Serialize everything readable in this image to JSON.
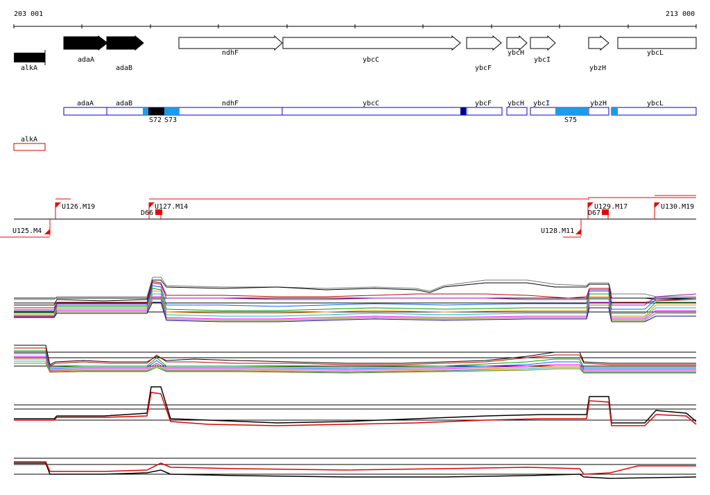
{
  "axis": {
    "start_label": "203 001",
    "end_label": "213 000"
  },
  "genes_plus": [
    "adaA",
    "adaB",
    "ndhF",
    "ybcC",
    "ybcF",
    "ybcH",
    "ybcI",
    "ybzH",
    "ybcL"
  ],
  "genes_minus": [
    "alkA"
  ],
  "transcripts_plus": [
    "adaA",
    "adaB",
    "ndhF",
    "ybcC",
    "ybcF",
    "ybcH",
    "ybcI",
    "ybzH",
    "ybcL"
  ],
  "transcripts_minus": [
    "alkA"
  ],
  "segment_labels": [
    "S72",
    "S73",
    "S75"
  ],
  "upshift_labels": [
    "U126.M19",
    "U127.M14",
    "U129.M17",
    "U130.M19"
  ],
  "downshift_labels": [
    "D66",
    "D67"
  ],
  "minus_upshift_labels": [
    "U125.M4",
    "U128.M11"
  ],
  "colors": {
    "gene_solid": "#000000",
    "transcript_border": "#0000cc",
    "segment_light": "#1e9be8",
    "segment_dark": "#00008b",
    "segment_black": "#000000",
    "minus_transcript": "#cc0000",
    "shift_marker": "#ee0000"
  }
}
